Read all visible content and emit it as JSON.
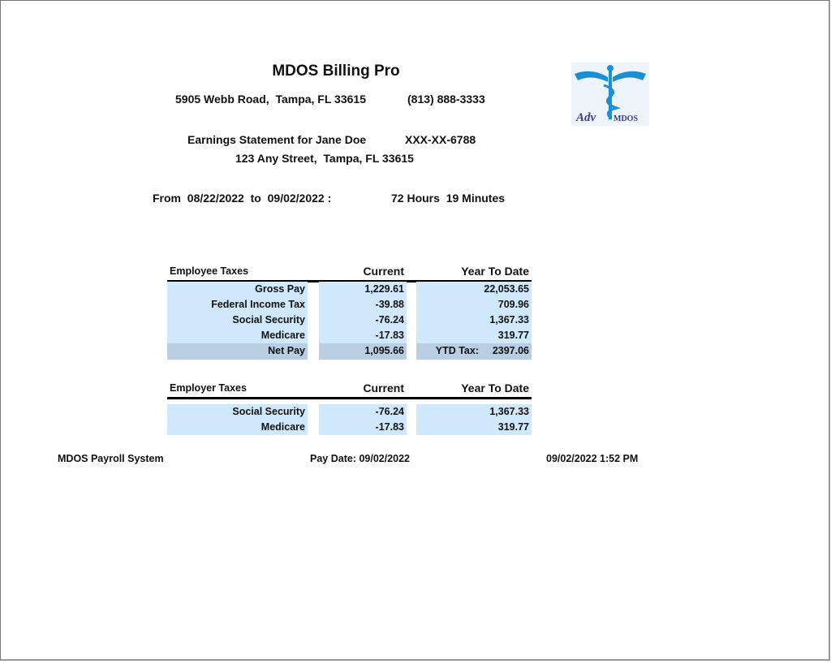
{
  "header": {
    "title": "MDOS Billing Pro",
    "address": "5905 Webb Road,  Tampa, FL 33615",
    "phone": "(813) 888-3333",
    "logo_text": "MDOS",
    "logo_script": "Adv"
  },
  "statement": {
    "label": "Earnings Statement for Jane Doe",
    "ssn": "XXX-XX-6788",
    "address": "123 Any Street,  Tampa, FL 33615"
  },
  "period": {
    "range": "From  08/22/2022  to  09/02/2022 :",
    "hours": "72 Hours  19 Minutes"
  },
  "employee_taxes": {
    "headers": [
      "Employee Taxes",
      "Current",
      "Year To Date"
    ],
    "rows": [
      [
        "Gross Pay",
        "1,229.61",
        "22,053.65"
      ],
      [
        "Federal Income Tax",
        "-39.88",
        "709.96"
      ],
      [
        "Social Security",
        "-76.24",
        "1,367.33"
      ],
      [
        "Medicare",
        "-17.83",
        "319.77"
      ]
    ],
    "net_pay": {
      "label": "Net Pay",
      "current": "1,095.66",
      "ytd_label": "YTD Tax:",
      "ytd_value": "2397.06"
    }
  },
  "employer_taxes": {
    "headers": [
      "Employer Taxes",
      "Current",
      "Year To Date"
    ],
    "rows": [
      [
        "Social Security",
        "-76.24",
        "1,367.33"
      ],
      [
        "Medicare",
        "-17.83",
        "319.77"
      ]
    ]
  },
  "footer": {
    "system": "MDOS Payroll System",
    "pay_date": "Pay Date: 09/02/2022",
    "timestamp": "09/02/2022 1:52 PM"
  }
}
